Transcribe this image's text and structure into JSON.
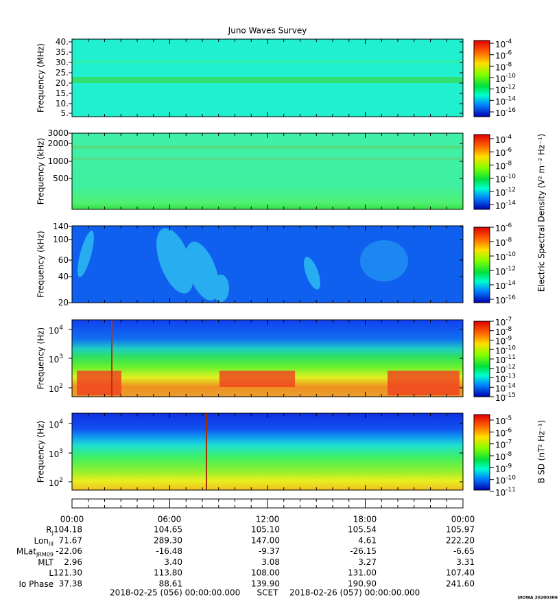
{
  "title": "Juno Waves Survey",
  "panels": [
    {
      "ylabel": "Frequency (MHz)",
      "yticks": [
        {
          "base": "40."
        },
        {
          "base": "35."
        },
        {
          "base": "30."
        },
        {
          "base": "25."
        },
        {
          "base": "20."
        },
        {
          "base": "15."
        },
        {
          "base": "10."
        },
        {
          "base": "5."
        }
      ],
      "cbar_ticks": [
        {
          "base": "10",
          "exp": "-4"
        },
        {
          "base": "10",
          "exp": "-6"
        },
        {
          "base": "10",
          "exp": "-8"
        },
        {
          "base": "10",
          "exp": "-10"
        },
        {
          "base": "10",
          "exp": "-12"
        },
        {
          "base": "10",
          "exp": "-14"
        },
        {
          "base": "10",
          "exp": "-16"
        }
      ]
    },
    {
      "ylabel": "Frequency (kHz)",
      "yticks": [
        {
          "base": "3000"
        },
        {
          "base": "2000"
        },
        {
          "base": "1000"
        },
        {
          "base": "500"
        }
      ],
      "cbar_ticks": [
        {
          "base": "10",
          "exp": "-4"
        },
        {
          "base": "10",
          "exp": "-6"
        },
        {
          "base": "10",
          "exp": "-8"
        },
        {
          "base": "10",
          "exp": "-10"
        },
        {
          "base": "10",
          "exp": "-12"
        },
        {
          "base": "10",
          "exp": "-14"
        }
      ]
    },
    {
      "ylabel": "Frequency (kHz)",
      "yticks": [
        {
          "base": "140"
        },
        {
          "base": "100"
        },
        {
          "base": "60"
        },
        {
          "base": "40"
        },
        {
          "base": "20"
        }
      ],
      "cbar_ticks": [
        {
          "base": "10",
          "exp": "-6"
        },
        {
          "base": "10",
          "exp": "-8"
        },
        {
          "base": "10",
          "exp": "-10"
        },
        {
          "base": "10",
          "exp": "-12"
        },
        {
          "base": "10",
          "exp": "-14"
        },
        {
          "base": "10",
          "exp": "-16"
        }
      ]
    },
    {
      "ylabel": "Frequency (Hz)",
      "yticks": [
        {
          "base": "10",
          "exp": "4"
        },
        {
          "base": "10",
          "exp": "3"
        },
        {
          "base": "10",
          "exp": "2"
        }
      ],
      "cbar_ticks": [
        {
          "base": "10",
          "exp": "-7"
        },
        {
          "base": "10",
          "exp": "-8"
        },
        {
          "base": "10",
          "exp": "-9"
        },
        {
          "base": "10",
          "exp": "-10"
        },
        {
          "base": "10",
          "exp": "-11"
        },
        {
          "base": "10",
          "exp": "-12"
        },
        {
          "base": "10",
          "exp": "-13"
        },
        {
          "base": "10",
          "exp": "-14"
        },
        {
          "base": "10",
          "exp": "-15"
        }
      ]
    },
    {
      "ylabel": "Frequency (Hz)",
      "yticks": [
        {
          "base": "10",
          "exp": "4"
        },
        {
          "base": "10",
          "exp": "3"
        },
        {
          "base": "10",
          "exp": "2"
        }
      ],
      "cbar_ticks": [
        {
          "base": "10",
          "exp": "-5"
        },
        {
          "base": "10",
          "exp": "-6"
        },
        {
          "base": "10",
          "exp": "-7"
        },
        {
          "base": "10",
          "exp": "-8"
        },
        {
          "base": "10",
          "exp": "-9"
        },
        {
          "base": "10",
          "exp": "-10"
        },
        {
          "base": "10",
          "exp": "-11"
        }
      ]
    }
  ],
  "electric_cbar_label": "Electric Spectral Density (V² m⁻² Hz⁻¹)",
  "magnetic_cbar_label": "B SD (nT² Hz⁻¹)",
  "time_labels": [
    "00:00",
    "06:00",
    "12:00",
    "18:00",
    "00:00"
  ],
  "ephemeris": [
    {
      "label": "R",
      "sub": "J",
      "values": [
        "104.18",
        "104.65",
        "105.10",
        "105.54",
        "105.97"
      ]
    },
    {
      "label": "Lon",
      "sub": "III",
      "values": [
        "71.67",
        "289.30",
        "147.00",
        "4.61",
        "222.20"
      ]
    },
    {
      "label": "MLat",
      "sub": "JRM09",
      "values": [
        "-22.06",
        "-16.48",
        "-9.37",
        "-26.15",
        "-6.65"
      ]
    },
    {
      "label": "MLT",
      "values": [
        "2.96",
        "3.40",
        "3.08",
        "3.27",
        "3.31"
      ]
    },
    {
      "label": "L",
      "values": [
        "121.30",
        "113.80",
        "108.00",
        "131.00",
        "107.40"
      ]
    },
    {
      "label": "Io Phase",
      "values": [
        "37.38",
        "88.61",
        "139.90",
        "190.90",
        "241.60"
      ]
    }
  ],
  "footer": {
    "start": "2018-02-25 (056) 00:00:00.000",
    "scet": "SCET",
    "end": "2018-02-26 (057) 00:00:00.000"
  },
  "credit": "UIOWA 20200306"
}
